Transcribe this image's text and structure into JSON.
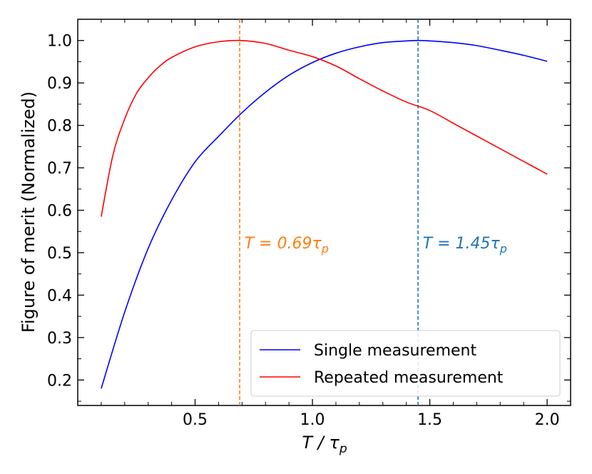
{
  "chart_data": {
    "type": "line",
    "xlabel": "T / τp",
    "xlabel_parts": {
      "main": "T / τ",
      "sub": "p"
    },
    "ylabel": "Figure of merit (Normalized)",
    "xlim": [
      0.0,
      2.1
    ],
    "ylim": [
      0.14,
      1.05
    ],
    "x_ticks_major": [
      0.5,
      1.0,
      1.5,
      2.0
    ],
    "x_tick_labels": [
      "0.5",
      "1.0",
      "1.5",
      "2.0"
    ],
    "x_ticks_minor": [
      0.1,
      0.2,
      0.3,
      0.4,
      0.6,
      0.7,
      0.8,
      0.9,
      1.1,
      1.2,
      1.3,
      1.4,
      1.6,
      1.7,
      1.8,
      1.9,
      2.1
    ],
    "y_ticks_major": [
      0.2,
      0.3,
      0.4,
      0.5,
      0.6,
      0.7,
      0.8,
      0.9,
      1.0
    ],
    "y_tick_labels": [
      "0.2",
      "0.3",
      "0.4",
      "0.5",
      "0.6",
      "0.7",
      "0.8",
      "0.9",
      "1.0"
    ],
    "y_ticks_minor": [
      0.15,
      0.25,
      0.35,
      0.45,
      0.55,
      0.65,
      0.75,
      0.85,
      0.95,
      1.05
    ],
    "grid": false,
    "legend_position": "lower-right",
    "series": [
      {
        "name": "Single measurement",
        "color": "#0000ff",
        "x": [
          0.1,
          0.2,
          0.3,
          0.4,
          0.5,
          0.6,
          0.7,
          0.8,
          0.9,
          1.0,
          1.1,
          1.2,
          1.3,
          1.4,
          1.45,
          1.5,
          1.6,
          1.7,
          1.8,
          1.9,
          2.0
        ],
        "y": [
          0.18,
          0.36,
          0.51,
          0.624,
          0.714,
          0.774,
          0.83,
          0.878,
          0.918,
          0.948,
          0.97,
          0.985,
          0.995,
          0.999,
          1.0,
          0.999,
          0.995,
          0.988,
          0.977,
          0.965,
          0.951
        ]
      },
      {
        "name": "Repeated measurement",
        "color": "#ff0000",
        "x": [
          0.1,
          0.15,
          0.2,
          0.25,
          0.3,
          0.35,
          0.4,
          0.5,
          0.6,
          0.69,
          0.8,
          0.9,
          1.0,
          1.1,
          1.2,
          1.3,
          1.4,
          1.5,
          1.6,
          1.7,
          1.8,
          1.9,
          2.0
        ],
        "y": [
          0.585,
          0.73,
          0.815,
          0.875,
          0.912,
          0.94,
          0.96,
          0.985,
          0.997,
          1.0,
          0.993,
          0.977,
          0.962,
          0.94,
          0.91,
          0.881,
          0.855,
          0.835,
          0.805,
          0.775,
          0.745,
          0.715,
          0.685
        ]
      }
    ],
    "vlines": [
      {
        "x": 0.69,
        "color": "#ff7f0e",
        "style": "dashed"
      },
      {
        "x": 1.45,
        "color": "#1f77b4",
        "style": "dashed"
      }
    ],
    "annotations": [
      {
        "text": "T = 0.69τp",
        "main": "T = 0.69τ",
        "sub": "p",
        "x": 0.71,
        "y": 0.51,
        "color": "#ff7f0e"
      },
      {
        "text": "T = 1.45τp",
        "main": "T = 1.45τ",
        "sub": "p",
        "x": 1.47,
        "y": 0.51,
        "color": "#1f77b4"
      }
    ]
  }
}
